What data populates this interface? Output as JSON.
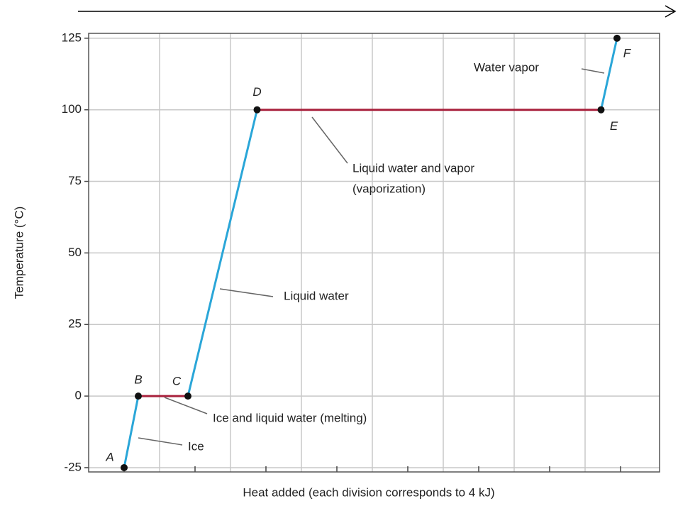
{
  "chart_data": {
    "type": "line",
    "x_label": "Heat added (each division corresponds to 4 kJ)",
    "y_label": "Temperature (°C)",
    "x": [
      0,
      0.8,
      3.6,
      7.5,
      26.9,
      27.8
    ],
    "series": [
      {
        "values": [
          -25,
          0,
          0,
          100,
          100,
          125
        ]
      }
    ],
    "point_labels": [
      "A",
      "B",
      "C",
      "D",
      "E",
      "F"
    ],
    "segment_colors": [
      "#2aa6d8",
      "#a8203c",
      "#2aa6d8",
      "#a8203c",
      "#2aa6d8"
    ],
    "xlim": [
      -2,
      30.2
    ],
    "ylim": [
      -26.5,
      126.7
    ],
    "xticks": [
      0,
      4,
      8,
      12,
      16,
      20,
      24,
      28
    ],
    "x_minor_ticks": [
      2,
      6,
      10,
      14,
      18,
      22,
      26
    ],
    "yticks": [
      -25,
      0,
      25,
      50,
      75,
      100,
      125
    ],
    "grid": true,
    "annotations": [
      {
        "text": "Water vapor"
      },
      {
        "text": "Liquid water and vapor"
      },
      {
        "text": "(vaporization)"
      },
      {
        "text": "Liquid water"
      },
      {
        "text": "Ice and liquid water (melting)"
      },
      {
        "text": "Ice"
      }
    ]
  }
}
